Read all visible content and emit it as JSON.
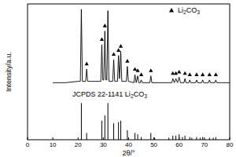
{
  "chart_data": {
    "type": "line",
    "x_label": "2θ/°",
    "y_label": "Intensity/a.u.",
    "xlim": [
      0,
      80
    ],
    "xticks": [
      0,
      10,
      20,
      30,
      40,
      50,
      60,
      70,
      80
    ],
    "ylim": [
      0,
      100
    ],
    "yticks": [],
    "tick_labels": "x",
    "grid": false,
    "legend": "upper right",
    "annotations": [
      "JCPDS 22-1141 Li2CO3"
    ],
    "series": [
      {
        "type": "line",
        "color": "#000000",
        "x": [
          10,
          15,
          20,
          20.9,
          21.3,
          21.7,
          23.0,
          23.4,
          23.8,
          25,
          27,
          29.0,
          29.4,
          29.8,
          30.2,
          30.6,
          31.0,
          31.4,
          31.8,
          32.2,
          33.7,
          34.1,
          34.5,
          35.6,
          36.0,
          36.4,
          36.9,
          37.3,
          39.1,
          39.5,
          39.9,
          42.1,
          42.5,
          43.0,
          43.6,
          44.0,
          44.6,
          45.0,
          45.4,
          48.4,
          48.8,
          49.2,
          57.1,
          57.5,
          58.1,
          58.7,
          59.35,
          60.0,
          60.5,
          61.9,
          62.3,
          62.7,
          63.8,
          64.2,
          64.6,
          66.5,
          66.9,
          67.3,
          68.9,
          69.3,
          69.7,
          71.6,
          72.0,
          72.4,
          74.1,
          74.5,
          74.9,
          77,
          80
        ],
        "values": [
          42,
          42,
          43,
          43,
          96,
          43,
          43,
          52,
          43,
          43,
          43,
          43,
          70,
          44,
          44,
          80,
          44,
          44,
          95,
          43,
          43,
          59,
          43,
          43,
          62,
          45,
          65,
          43,
          43,
          54,
          43,
          42,
          48,
          42,
          47,
          42,
          42,
          44,
          42,
          42,
          47,
          42,
          42,
          45,
          42,
          45,
          42,
          46,
          42,
          42,
          45,
          42,
          42,
          44,
          42,
          42,
          44,
          42,
          42,
          44,
          42,
          42,
          44,
          42,
          42,
          44,
          42,
          42,
          42
        ]
      },
      {
        "type": "scatter",
        "name": "Li2CO3",
        "marker": "triangle",
        "color": "#000000",
        "x": [
          23.4,
          29.4,
          30.6,
          34.1,
          36.0,
          36.9,
          39.5,
          42.5,
          43.6,
          45.0,
          48.8,
          57.5,
          58.7,
          60.0,
          62.3,
          64.2,
          66.9,
          69.3,
          72.0,
          74.5
        ],
        "values": [
          56,
          74,
          84,
          63,
          66,
          69,
          58,
          52,
          51,
          48,
          51,
          49,
          49,
          50,
          49,
          48,
          48,
          48,
          48,
          48
        ]
      },
      {
        "type": "stem",
        "color": "#000000",
        "x": [
          21.3,
          23.4,
          29.4,
          30.6,
          31.8,
          34.1,
          36.0,
          36.9,
          39.5,
          42.5,
          43.6,
          45.0,
          48.8,
          50.3,
          55.9,
          57.5,
          58.7,
          60.0,
          61.3,
          62.3,
          64.2,
          65.0,
          66.9,
          68.3,
          69.3,
          72.0,
          73.5,
          74.5
        ],
        "values": [
          27,
          5,
          14,
          18,
          27,
          12,
          13,
          14,
          7,
          5,
          4,
          2,
          5,
          1.5,
          1.5,
          3,
          3,
          4,
          2,
          3,
          2,
          1.5,
          2,
          1.5,
          2,
          1.5,
          1.5,
          2
        ]
      }
    ]
  }
}
